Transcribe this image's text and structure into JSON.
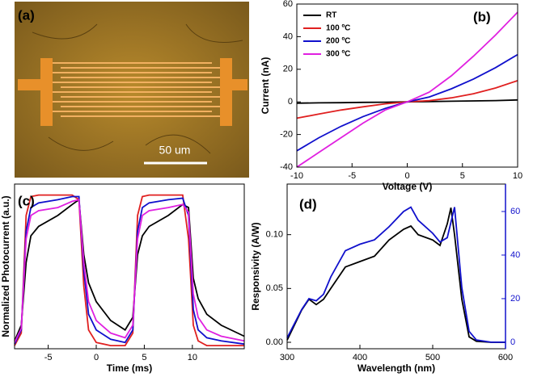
{
  "image": {
    "label": "(a)",
    "scale_bar": "50 um"
  },
  "chart_data": [
    {
      "type": "line",
      "label": "(b)",
      "xlabel": "Voltage (V)",
      "ylabel": "Current (nA)",
      "x": [
        -10,
        -8,
        -6,
        -4,
        -2,
        0,
        2,
        4,
        6,
        8,
        10
      ],
      "xlim": [
        -10,
        10
      ],
      "xticks": [
        -10,
        -5,
        0,
        5,
        10
      ],
      "ylim": [
        -40,
        60
      ],
      "yticks": [
        -40,
        -20,
        0,
        20,
        40,
        60
      ],
      "legend": "upper left",
      "series": [
        {
          "name": "RT",
          "color": "#000000",
          "values": [
            -0.8,
            -0.6,
            -0.5,
            -0.3,
            -0.2,
            0,
            0.2,
            0.4,
            0.6,
            0.8,
            1.2
          ]
        },
        {
          "name": "100 ºC",
          "color": "#e02020",
          "values": [
            -10,
            -7.5,
            -5,
            -3,
            -1.2,
            0,
            0.8,
            2.5,
            5,
            8.5,
            13
          ]
        },
        {
          "name": "200 ºC",
          "color": "#1010cc",
          "values": [
            -30,
            -22,
            -15,
            -9,
            -4,
            0,
            3,
            8,
            14,
            21,
            29
          ]
        },
        {
          "name": "300 ºC",
          "color": "#e020e0",
          "values": [
            -40,
            -31,
            -22,
            -13,
            -5,
            0,
            6,
            16,
            28,
            41,
            55
          ]
        }
      ]
    },
    {
      "type": "line",
      "label": "(c)",
      "xlabel": "Time (ms)",
      "ylabel": "Normalized Photocurrent (a.u.)",
      "x": [
        -8.5,
        -7.8,
        -7.3,
        -6.8,
        -6,
        -4,
        -2.5,
        -1.8,
        -1.3,
        -0.8,
        0,
        1.5,
        3,
        3.8,
        4.3,
        4.8,
        5.5,
        7.5,
        9,
        9.6,
        10.1,
        10.6,
        11.5,
        13,
        15.4
      ],
      "xlim": [
        -8.5,
        15.4
      ],
      "xticks": [
        -5,
        0,
        5,
        10
      ],
      "ylim": [
        0,
        1.05
      ],
      "series": [
        {
          "color": "#000000",
          "values": [
            0.05,
            0.15,
            0.55,
            0.72,
            0.78,
            0.85,
            0.92,
            0.95,
            0.6,
            0.42,
            0.3,
            0.18,
            0.12,
            0.2,
            0.6,
            0.72,
            0.78,
            0.85,
            0.92,
            0.9,
            0.45,
            0.32,
            0.22,
            0.15,
            0.08
          ]
        },
        {
          "color": "#e02020",
          "values": [
            0.02,
            0.1,
            0.85,
            0.97,
            0.98,
            0.98,
            0.98,
            0.95,
            0.4,
            0.12,
            0.04,
            0.02,
            0.02,
            0.1,
            0.85,
            0.97,
            0.98,
            0.98,
            0.98,
            0.7,
            0.15,
            0.05,
            0.02,
            0.02,
            0.02
          ]
        },
        {
          "color": "#1010cc",
          "values": [
            0.03,
            0.12,
            0.75,
            0.9,
            0.93,
            0.95,
            0.97,
            0.97,
            0.5,
            0.22,
            0.12,
            0.06,
            0.04,
            0.12,
            0.75,
            0.9,
            0.93,
            0.95,
            0.96,
            0.85,
            0.25,
            0.12,
            0.07,
            0.05,
            0.03
          ]
        },
        {
          "color": "#e020e0",
          "values": [
            0.04,
            0.13,
            0.7,
            0.85,
            0.88,
            0.9,
            0.94,
            0.95,
            0.55,
            0.3,
            0.18,
            0.1,
            0.07,
            0.15,
            0.7,
            0.85,
            0.88,
            0.9,
            0.92,
            0.87,
            0.35,
            0.2,
            0.12,
            0.08,
            0.05
          ]
        }
      ]
    },
    {
      "type": "line",
      "label": "(d)",
      "xlabel": "Wavelength (nm)",
      "ylabel": "Responsivity (A/W)",
      "x": [
        300,
        320,
        330,
        340,
        350,
        360,
        380,
        400,
        420,
        440,
        460,
        470,
        480,
        500,
        510,
        520,
        525,
        530,
        540,
        550,
        560,
        580,
        600
      ],
      "xlim": [
        300,
        600
      ],
      "xticks": [
        300,
        400,
        500,
        600
      ],
      "ylim": [
        -0.006,
        0.147
      ],
      "yticks": [
        {
          "value": 0,
          "label": "0.00"
        },
        {
          "value": 0.05,
          "label": "0.05"
        },
        {
          "value": 0.1,
          "label": "0.10"
        }
      ],
      "y2lim": [
        -3,
        72.6
      ],
      "y2ticks": [
        0,
        20,
        40,
        60
      ],
      "y2_color": "#1010cc",
      "series": [
        {
          "color": "#000000",
          "values": [
            0.002,
            0.03,
            0.04,
            0.035,
            0.04,
            0.05,
            0.07,
            0.075,
            0.08,
            0.095,
            0.105,
            0.108,
            0.1,
            0.095,
            0.09,
            0.11,
            0.125,
            0.1,
            0.04,
            0.005,
            0.001,
            0,
            0
          ]
        },
        {
          "color": "#1010cc",
          "axis": "y2",
          "values": [
            2,
            15,
            20,
            19,
            22,
            30,
            42,
            45,
            47,
            53,
            60,
            62,
            56,
            50,
            46,
            48,
            55,
            62,
            25,
            5,
            1,
            0,
            0
          ]
        }
      ]
    }
  ]
}
